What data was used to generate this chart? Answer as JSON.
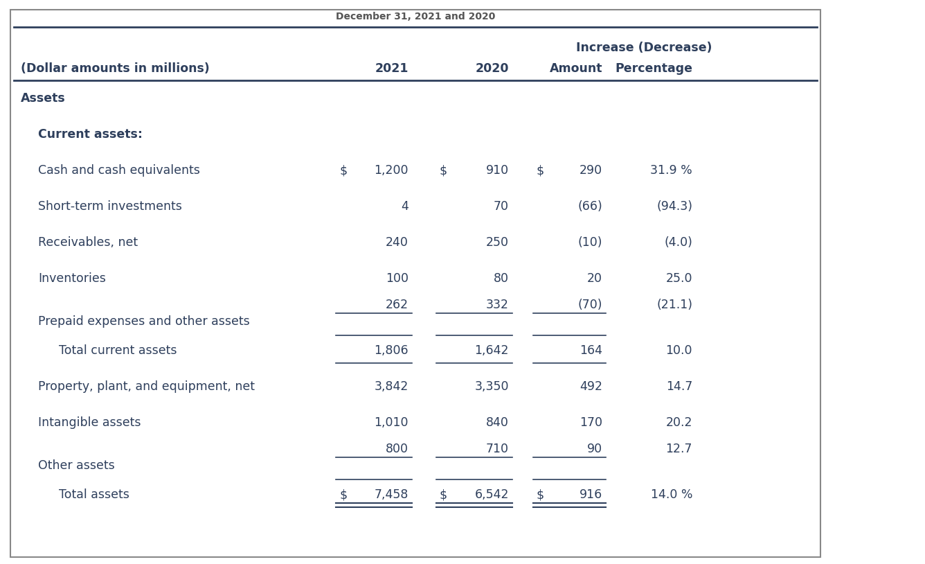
{
  "title": "December 31, 2021 and 2020",
  "header_row": [
    "(Dollar amounts in millions)",
    "2021",
    "2020",
    "Amount",
    "Percentage"
  ],
  "increase_label": "Increase (Decrease)",
  "rows": [
    {
      "label": "Assets",
      "type": "section_header",
      "indent": 0,
      "dollar_sign_2021": false,
      "dollar_sign_2020": false,
      "dollar_sign_amt": false,
      "v2021": "",
      "v2020": "",
      "amount": "",
      "pct": ""
    },
    {
      "label": "Current assets:",
      "type": "subsection_header",
      "indent": 1,
      "dollar_sign_2021": false,
      "dollar_sign_2020": false,
      "dollar_sign_amt": false,
      "v2021": "",
      "v2020": "",
      "amount": "",
      "pct": ""
    },
    {
      "label": "Cash and cash equivalents",
      "type": "data",
      "indent": 1,
      "dollar_sign_2021": true,
      "dollar_sign_2020": true,
      "dollar_sign_amt": true,
      "v2021": "1,200",
      "v2020": "910",
      "amount": "290",
      "pct": "31.9 %"
    },
    {
      "label": "Short-term investments",
      "type": "data",
      "indent": 1,
      "dollar_sign_2021": false,
      "dollar_sign_2020": false,
      "dollar_sign_amt": false,
      "v2021": "4",
      "v2020": "70",
      "amount": "(66)",
      "pct": "(94.3)"
    },
    {
      "label": "Receivables, net",
      "type": "data",
      "indent": 1,
      "dollar_sign_2021": false,
      "dollar_sign_2020": false,
      "dollar_sign_amt": false,
      "v2021": "240",
      "v2020": "250",
      "amount": "(10)",
      "pct": "(4.0)"
    },
    {
      "label": "Inventories",
      "type": "data",
      "indent": 1,
      "dollar_sign_2021": false,
      "dollar_sign_2020": false,
      "dollar_sign_amt": false,
      "v2021": "100",
      "v2020": "80",
      "amount": "20",
      "pct": "25.0"
    },
    {
      "label": "Prepaid expenses and other assets",
      "type": "data_underline",
      "indent": 1,
      "dollar_sign_2021": false,
      "dollar_sign_2020": false,
      "dollar_sign_amt": false,
      "v2021": "262",
      "v2020": "332",
      "amount": "(70)",
      "pct": "(21.1)"
    },
    {
      "label": "Total current assets",
      "type": "subtotal",
      "indent": 2,
      "dollar_sign_2021": false,
      "dollar_sign_2020": false,
      "dollar_sign_amt": false,
      "v2021": "1,806",
      "v2020": "1,642",
      "amount": "164",
      "pct": "10.0"
    },
    {
      "label": "Property, plant, and equipment, net",
      "type": "data",
      "indent": 1,
      "dollar_sign_2021": false,
      "dollar_sign_2020": false,
      "dollar_sign_amt": false,
      "v2021": "3,842",
      "v2020": "3,350",
      "amount": "492",
      "pct": "14.7"
    },
    {
      "label": "Intangible assets",
      "type": "data",
      "indent": 1,
      "dollar_sign_2021": false,
      "dollar_sign_2020": false,
      "dollar_sign_amt": false,
      "v2021": "1,010",
      "v2020": "840",
      "amount": "170",
      "pct": "20.2"
    },
    {
      "label": "Other assets",
      "type": "data_underline",
      "indent": 1,
      "dollar_sign_2021": false,
      "dollar_sign_2020": false,
      "dollar_sign_amt": false,
      "v2021": "800",
      "v2020": "710",
      "amount": "90",
      "pct": "12.7"
    },
    {
      "label": "Total assets",
      "type": "total",
      "indent": 2,
      "dollar_sign_2021": true,
      "dollar_sign_2020": true,
      "dollar_sign_amt": true,
      "v2021": "7,458",
      "v2020": "6,542",
      "amount": "916",
      "pct": "14.0 %"
    }
  ],
  "bg_color": "#ffffff",
  "text_color": "#2e3f5c",
  "font_size": 12.5,
  "title_font_size": 10
}
